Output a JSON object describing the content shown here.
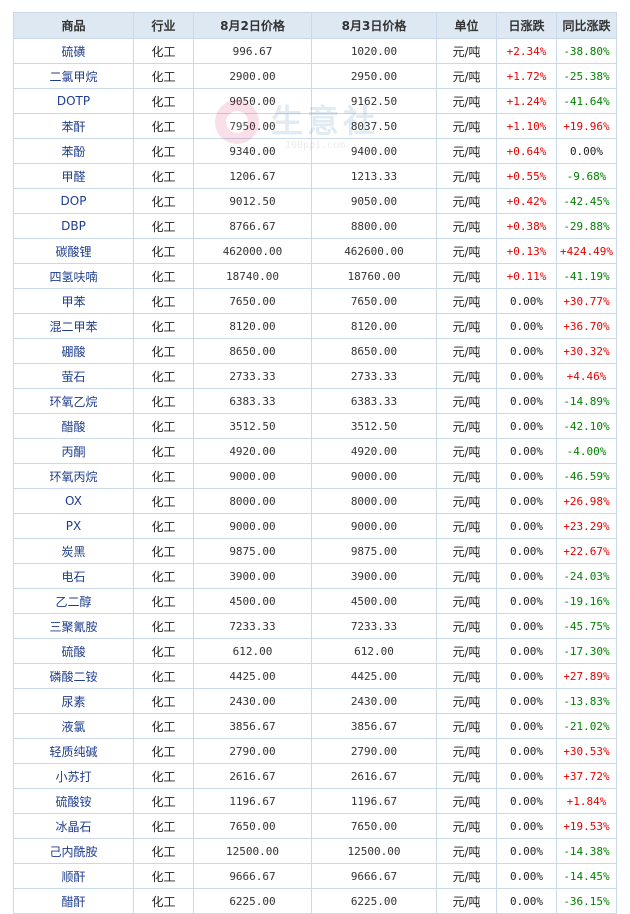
{
  "headers": {
    "name": "商品",
    "industry": "行业",
    "price1": "8月2日价格",
    "price2": "8月3日价格",
    "unit": "单位",
    "daily": "日涨跌",
    "yoy": "同比涨跌"
  },
  "watermark": {
    "text": "生意社",
    "url": "100ppi.com"
  },
  "colors": {
    "up": "#e60000",
    "down": "#008000",
    "header_bg": "#dde8f3",
    "border": "#c9d9ea",
    "name": "#1f3d8f"
  },
  "rows": [
    {
      "name": "硫磺",
      "industry": "化工",
      "p1": "996.67",
      "p2": "1020.00",
      "unit": "元/吨",
      "daily": "+2.34%",
      "yoy": "-38.80%"
    },
    {
      "name": "二氯甲烷",
      "industry": "化工",
      "p1": "2900.00",
      "p2": "2950.00",
      "unit": "元/吨",
      "daily": "+1.72%",
      "yoy": "-25.38%"
    },
    {
      "name": "DOTP",
      "industry": "化工",
      "p1": "9050.00",
      "p2": "9162.50",
      "unit": "元/吨",
      "daily": "+1.24%",
      "yoy": "-41.64%"
    },
    {
      "name": "苯酐",
      "industry": "化工",
      "p1": "7950.00",
      "p2": "8037.50",
      "unit": "元/吨",
      "daily": "+1.10%",
      "yoy": "+19.96%"
    },
    {
      "name": "苯酚",
      "industry": "化工",
      "p1": "9340.00",
      "p2": "9400.00",
      "unit": "元/吨",
      "daily": "+0.64%",
      "yoy": "0.00%"
    },
    {
      "name": "甲醛",
      "industry": "化工",
      "p1": "1206.67",
      "p2": "1213.33",
      "unit": "元/吨",
      "daily": "+0.55%",
      "yoy": "-9.68%"
    },
    {
      "name": "DOP",
      "industry": "化工",
      "p1": "9012.50",
      "p2": "9050.00",
      "unit": "元/吨",
      "daily": "+0.42%",
      "yoy": "-42.45%"
    },
    {
      "name": "DBP",
      "industry": "化工",
      "p1": "8766.67",
      "p2": "8800.00",
      "unit": "元/吨",
      "daily": "+0.38%",
      "yoy": "-29.88%"
    },
    {
      "name": "碳酸锂",
      "industry": "化工",
      "p1": "462000.00",
      "p2": "462600.00",
      "unit": "元/吨",
      "daily": "+0.13%",
      "yoy": "+424.49%"
    },
    {
      "name": "四氢呋喃",
      "industry": "化工",
      "p1": "18740.00",
      "p2": "18760.00",
      "unit": "元/吨",
      "daily": "+0.11%",
      "yoy": "-41.19%"
    },
    {
      "name": "甲苯",
      "industry": "化工",
      "p1": "7650.00",
      "p2": "7650.00",
      "unit": "元/吨",
      "daily": "0.00%",
      "yoy": "+30.77%"
    },
    {
      "name": "混二甲苯",
      "industry": "化工",
      "p1": "8120.00",
      "p2": "8120.00",
      "unit": "元/吨",
      "daily": "0.00%",
      "yoy": "+36.70%"
    },
    {
      "name": "硼酸",
      "industry": "化工",
      "p1": "8650.00",
      "p2": "8650.00",
      "unit": "元/吨",
      "daily": "0.00%",
      "yoy": "+30.32%"
    },
    {
      "name": "萤石",
      "industry": "化工",
      "p1": "2733.33",
      "p2": "2733.33",
      "unit": "元/吨",
      "daily": "0.00%",
      "yoy": "+4.46%"
    },
    {
      "name": "环氧乙烷",
      "industry": "化工",
      "p1": "6383.33",
      "p2": "6383.33",
      "unit": "元/吨",
      "daily": "0.00%",
      "yoy": "-14.89%"
    },
    {
      "name": "醋酸",
      "industry": "化工",
      "p1": "3512.50",
      "p2": "3512.50",
      "unit": "元/吨",
      "daily": "0.00%",
      "yoy": "-42.10%"
    },
    {
      "name": "丙酮",
      "industry": "化工",
      "p1": "4920.00",
      "p2": "4920.00",
      "unit": "元/吨",
      "daily": "0.00%",
      "yoy": "-4.00%"
    },
    {
      "name": "环氧丙烷",
      "industry": "化工",
      "p1": "9000.00",
      "p2": "9000.00",
      "unit": "元/吨",
      "daily": "0.00%",
      "yoy": "-46.59%"
    },
    {
      "name": "OX",
      "industry": "化工",
      "p1": "8000.00",
      "p2": "8000.00",
      "unit": "元/吨",
      "daily": "0.00%",
      "yoy": "+26.98%"
    },
    {
      "name": "PX",
      "industry": "化工",
      "p1": "9000.00",
      "p2": "9000.00",
      "unit": "元/吨",
      "daily": "0.00%",
      "yoy": "+23.29%"
    },
    {
      "name": "炭黑",
      "industry": "化工",
      "p1": "9875.00",
      "p2": "9875.00",
      "unit": "元/吨",
      "daily": "0.00%",
      "yoy": "+22.67%"
    },
    {
      "name": "电石",
      "industry": "化工",
      "p1": "3900.00",
      "p2": "3900.00",
      "unit": "元/吨",
      "daily": "0.00%",
      "yoy": "-24.03%"
    },
    {
      "name": "乙二醇",
      "industry": "化工",
      "p1": "4500.00",
      "p2": "4500.00",
      "unit": "元/吨",
      "daily": "0.00%",
      "yoy": "-19.16%"
    },
    {
      "name": "三聚氰胺",
      "industry": "化工",
      "p1": "7233.33",
      "p2": "7233.33",
      "unit": "元/吨",
      "daily": "0.00%",
      "yoy": "-45.75%"
    },
    {
      "name": "硫酸",
      "industry": "化工",
      "p1": "612.00",
      "p2": "612.00",
      "unit": "元/吨",
      "daily": "0.00%",
      "yoy": "-17.30%"
    },
    {
      "name": "磷酸二铵",
      "industry": "化工",
      "p1": "4425.00",
      "p2": "4425.00",
      "unit": "元/吨",
      "daily": "0.00%",
      "yoy": "+27.89%"
    },
    {
      "name": "尿素",
      "industry": "化工",
      "p1": "2430.00",
      "p2": "2430.00",
      "unit": "元/吨",
      "daily": "0.00%",
      "yoy": "-13.83%"
    },
    {
      "name": "液氯",
      "industry": "化工",
      "p1": "3856.67",
      "p2": "3856.67",
      "unit": "元/吨",
      "daily": "0.00%",
      "yoy": "-21.02%"
    },
    {
      "name": "轻质纯碱",
      "industry": "化工",
      "p1": "2790.00",
      "p2": "2790.00",
      "unit": "元/吨",
      "daily": "0.00%",
      "yoy": "+30.53%"
    },
    {
      "name": "小苏打",
      "industry": "化工",
      "p1": "2616.67",
      "p2": "2616.67",
      "unit": "元/吨",
      "daily": "0.00%",
      "yoy": "+37.72%"
    },
    {
      "name": "硫酸铵",
      "industry": "化工",
      "p1": "1196.67",
      "p2": "1196.67",
      "unit": "元/吨",
      "daily": "0.00%",
      "yoy": "+1.84%"
    },
    {
      "name": "冰晶石",
      "industry": "化工",
      "p1": "7650.00",
      "p2": "7650.00",
      "unit": "元/吨",
      "daily": "0.00%",
      "yoy": "+19.53%"
    },
    {
      "name": "己内酰胺",
      "industry": "化工",
      "p1": "12500.00",
      "p2": "12500.00",
      "unit": "元/吨",
      "daily": "0.00%",
      "yoy": "-14.38%"
    },
    {
      "name": "顺酐",
      "industry": "化工",
      "p1": "9666.67",
      "p2": "9666.67",
      "unit": "元/吨",
      "daily": "0.00%",
      "yoy": "-14.45%"
    },
    {
      "name": "醋酐",
      "industry": "化工",
      "p1": "6225.00",
      "p2": "6225.00",
      "unit": "元/吨",
      "daily": "0.00%",
      "yoy": "-36.15%"
    }
  ]
}
